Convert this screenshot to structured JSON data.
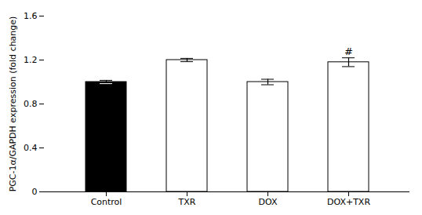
{
  "chart_data": {
    "type": "bar",
    "categories": [
      "Control",
      "TXR",
      "DOX",
      "DOX+TXR"
    ],
    "values": [
      1.0,
      1.2,
      1.0,
      1.18
    ],
    "errors": [
      0.015,
      0.015,
      0.025,
      0.04
    ],
    "colors": [
      "black",
      "white",
      "white",
      "white"
    ],
    "ylabel": "PGC-1α/GAPDH expression (fold change)",
    "ylim": [
      0,
      1.6
    ],
    "yticks": [
      0,
      0.4,
      0.8,
      1.2,
      1.6
    ],
    "annotations": [
      {
        "text": "#",
        "category": "DOX+TXR"
      }
    ],
    "grid": false
  }
}
